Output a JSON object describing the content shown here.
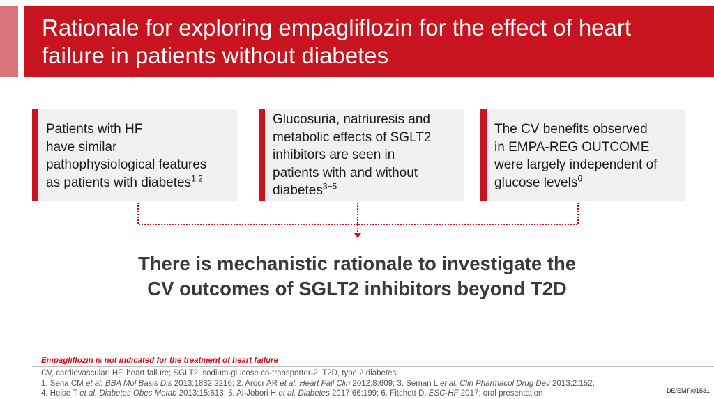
{
  "slide": {
    "title_line1": "Rationale for exploring empagliflozin for the effect of heart",
    "title_line2": "failure in patients without diabetes",
    "boxes": [
      {
        "lines": [
          "Patients with HF",
          "have similar",
          "pathophysiological features"
        ],
        "last_line": "as patients with diabetes",
        "superscript": "1,2"
      },
      {
        "lines": [
          "Glucosuria, natriuresis and",
          "metabolic effects of SGLT2",
          "inhibitors are seen in",
          "patients with and without"
        ],
        "last_line": "diabetes",
        "superscript": "3−5"
      },
      {
        "lines": [
          "The CV benefits observed",
          "in EMPA-REG OUTCOME",
          "were largely independent of"
        ],
        "last_line": "glucose levels",
        "superscript": "6"
      }
    ],
    "conclusion_line1": "There is mechanistic rationale to investigate the",
    "conclusion_line2": "CV outcomes of SGLT2 inhibitors beyond T2D",
    "disclaimer": "Empagliflozin is not indicated for the treatment of heart failure",
    "abbreviations": "CV, cardiovascular; HF, heart failure; SGLT2, sodium-glucose co-transporter-2; T2D, type 2 diabetes",
    "ref1": {
      "a": "1. Sena CM ",
      "etal1": "et al.",
      "j1": " BBA Mol Basis Dis",
      "b": " 2013;1832:2216; 2. Aroor AR ",
      "etal2": "et al.",
      "j2": " Heart Fail Clin",
      "c": " 2012;8:609; 3. Seman L ",
      "etal3": "et al.",
      "j3": " Clin Pharmacol Drug Dev",
      "d": " 2013;2:152;"
    },
    "ref2": {
      "a": "4. Heise T ",
      "etal1": "et al.",
      "j1": " Diabetes Obes Metab",
      "b": " 2013;15:613; 5. Al-Jobori H ",
      "etal2": "et al.",
      "j2": " Diabetes",
      "c": " 2017;66:199; 6. Fitchett D. ",
      "j3": "ESC-HF",
      "d": " 2017; oral presentation"
    },
    "doc_id": "DE/EMP/01531",
    "colors": {
      "brand_red": "#c8141e",
      "accent_pink": "#d9747a",
      "box_bg": "#f1f1f1"
    }
  }
}
